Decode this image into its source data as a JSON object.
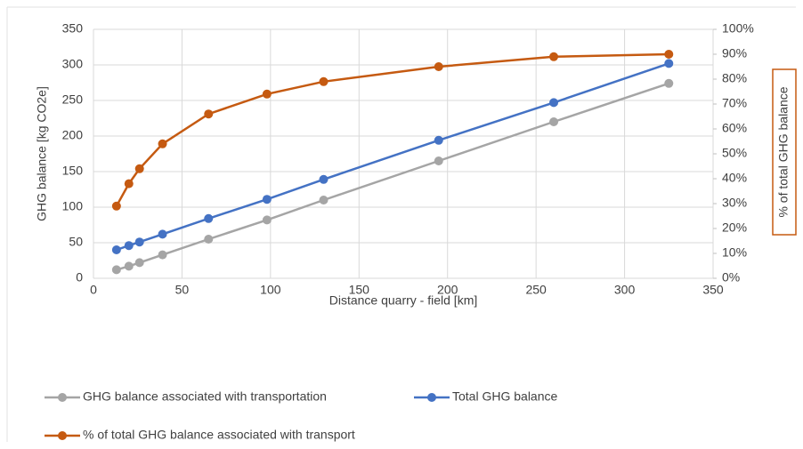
{
  "chart_data": {
    "type": "line",
    "x_label": "Distance quarry - field [km]",
    "y_label": "GHG balance [kg CO2e]",
    "y2_label": "% of total GHG balance",
    "x": [
      13,
      20,
      26,
      39,
      65,
      98,
      130,
      195,
      260,
      325
    ],
    "series": [
      {
        "name": "GHG balance associated with transportation",
        "color": "#a5a5a5",
        "values": [
          12,
          17,
          22,
          33,
          55,
          82,
          110,
          165,
          220,
          274
        ]
      },
      {
        "name": "Total GHG balance",
        "color": "#4472c4",
        "values": [
          40,
          46,
          51,
          62,
          84,
          111,
          139,
          194,
          247,
          302
        ]
      },
      {
        "name": "% of total GHG balance associated with transport",
        "color": "#c55a11",
        "axis": "y2",
        "values": [
          29,
          38,
          44,
          54,
          66,
          74,
          79,
          85,
          89,
          90
        ]
      }
    ],
    "xlim": [
      0,
      350
    ],
    "xticks": [
      0,
      50,
      100,
      150,
      200,
      250,
      300,
      350
    ],
    "ylim": [
      0,
      350
    ],
    "yticks": [
      0,
      50,
      100,
      150,
      200,
      250,
      300,
      350
    ],
    "y2lim": [
      0,
      100
    ],
    "y2ticks": [
      {
        "value": 0,
        "label": "0%"
      },
      {
        "value": 10,
        "label": "10%"
      },
      {
        "value": 20,
        "label": "20%"
      },
      {
        "value": 30,
        "label": "30%"
      },
      {
        "value": 40,
        "label": "40%"
      },
      {
        "value": 50,
        "label": "50%"
      },
      {
        "value": 60,
        "label": "60%"
      },
      {
        "value": 70,
        "label": "70%"
      },
      {
        "value": 80,
        "label": "80%"
      },
      {
        "value": 90,
        "label": "90%"
      },
      {
        "value": 100,
        "label": "100%"
      }
    ],
    "grid": true
  }
}
